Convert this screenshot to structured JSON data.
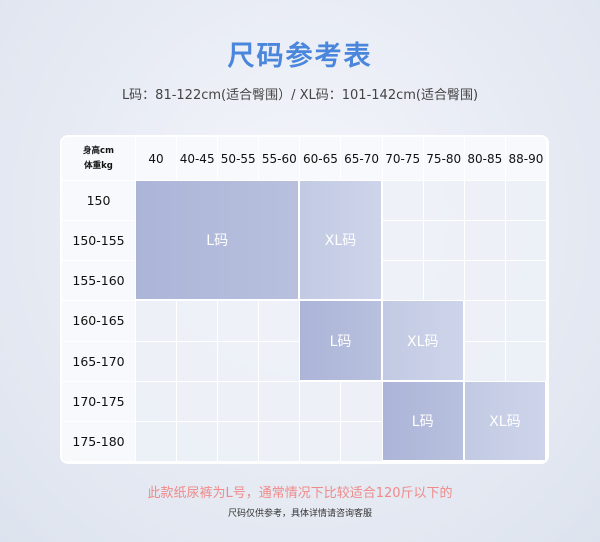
{
  "title": "尺码参考表",
  "subtitle": "L码：81-122cm(适合臀围）/ XL码：101-142cm(适合臀围)",
  "table": {
    "corner": [
      "身高cm",
      "体重kg"
    ],
    "columns": [
      "40",
      "40-45",
      "50-55",
      "55-60",
      "60-65",
      "65-70",
      "70-75",
      "75-80",
      "80-85",
      "88-90"
    ],
    "rows": [
      "150",
      "150-155",
      "155-160",
      "160-165",
      "165-170",
      "170-175",
      "175-180"
    ],
    "blocks": [
      {
        "label": "L码",
        "size": "L",
        "rows": [
          0,
          2
        ],
        "cols": [
          0,
          3
        ]
      },
      {
        "label": "XL码",
        "size": "XL",
        "rows": [
          0,
          2
        ],
        "cols": [
          4,
          5
        ]
      },
      {
        "label": "L码",
        "size": "L",
        "rows": [
          3,
          4
        ],
        "cols": [
          4,
          5
        ]
      },
      {
        "label": "XL码",
        "size": "XL",
        "rows": [
          3,
          4
        ],
        "cols": [
          6,
          7
        ]
      },
      {
        "label": "L码",
        "size": "L",
        "rows": [
          5,
          6
        ],
        "cols": [
          6,
          7
        ]
      },
      {
        "label": "XL码",
        "size": "XL",
        "rows": [
          5,
          6
        ],
        "cols": [
          8,
          9
        ]
      }
    ]
  },
  "note": "此款纸尿裤为L号，通常情况下比较适合120斤以下的",
  "note2": "尺码仅供参考，具体详情请咨询客服",
  "colors": {
    "title": "#4a86db",
    "note": "#f08a8a",
    "L": "#acb5d8",
    "XL": "#c2cae3"
  }
}
